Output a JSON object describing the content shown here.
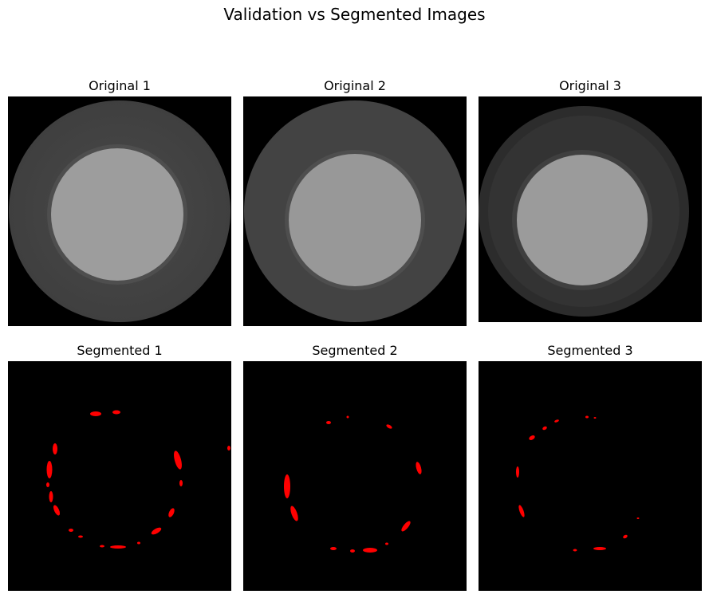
{
  "figure": {
    "title": "Validation vs Segmented Images"
  },
  "panels": [
    {
      "title": "Original 1"
    },
    {
      "title": "Original 2"
    },
    {
      "title": "Original 3"
    },
    {
      "title": "Segmented 1"
    },
    {
      "title": "Segmented 2"
    },
    {
      "title": "Segmented 3"
    }
  ],
  "colors": {
    "background": "#000000",
    "outer_disc": "#474747",
    "inner_disc": "#9a9a9a",
    "segment": "#ff0000"
  }
}
